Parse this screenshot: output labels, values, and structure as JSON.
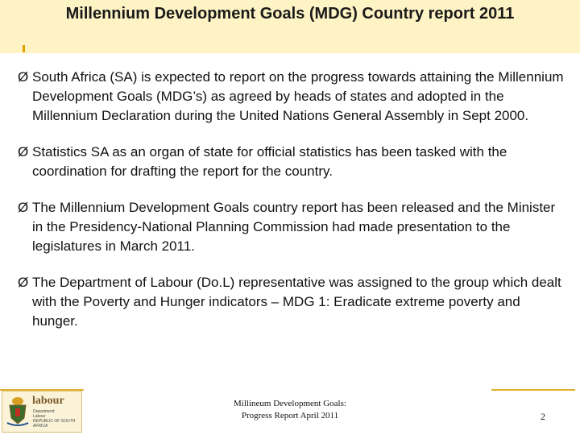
{
  "slide": {
    "title": "Millennium Development Goals (MDG) Country report 2011",
    "bullet_marker": "Ø",
    "bullets": [
      {
        "text": "South Africa (SA) is expected to report on the progress towards attaining the Millennium Development Goals (MDG’s) as agreed by heads of states and adopted in the Millennium Declaration during the United Nations General Assembly in Sept 2000."
      },
      {
        "text": "Statistics SA as an organ of state for official statistics has been tasked with the coordination for drafting the report for the country."
      },
      {
        "text": "The Millennium Development Goals country report has been released and the Minister in the Presidency-National Planning Commission had made presentation to the legislatures in March 2011."
      },
      {
        "text": "The Department of Labour (Do.L) representative was assigned to the group which dealt with the Poverty and Hunger indicators – MDG 1: Eradicate extreme poverty and hunger."
      }
    ]
  },
  "footer": {
    "logo_word": "labour",
    "logo_line1": "Department:",
    "logo_line2": "Labour",
    "logo_line3": "REPUBLIC OF SOUTH AFRICA",
    "center_line1": "Millineum Development Goals:",
    "center_line2": "Progress Report April 2011",
    "page_number": "2"
  },
  "colors": {
    "title_band": "#fdf3c4",
    "accent_gold": "#e0b030"
  }
}
